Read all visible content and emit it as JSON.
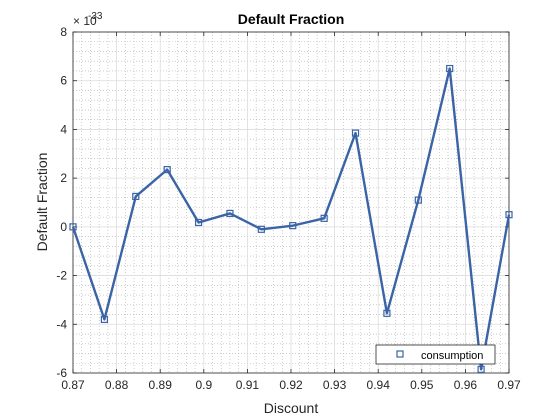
{
  "chart_data": {
    "type": "line",
    "title": "Default Fraction",
    "xlabel": "Discount",
    "ylabel": "Default Fraction",
    "y_exponent_label": "× 10",
    "y_exponent_value": "-33",
    "xlim": [
      0.87,
      0.97
    ],
    "ylim": [
      -6,
      8
    ],
    "x_ticks": [
      0.87,
      0.88,
      0.89,
      0.9,
      0.91,
      0.92,
      0.93,
      0.94,
      0.95,
      0.96,
      0.97
    ],
    "x_tick_labels": [
      "0.87",
      "0.88",
      "0.89",
      "0.9",
      "0.91",
      "0.92",
      "0.93",
      "0.94",
      "0.95",
      "0.96",
      "0.97"
    ],
    "y_ticks": [
      -6,
      -4,
      -2,
      0,
      2,
      4,
      6,
      8
    ],
    "y_tick_labels": [
      "-6",
      "-4",
      "-2",
      "0",
      "2",
      "4",
      "6",
      "8"
    ],
    "grid": true,
    "minor_grid": true,
    "legend_position": "bottom-right",
    "series": [
      {
        "name": "consumption",
        "marker": "square",
        "color": "#3a64a6",
        "x": [
          0.87,
          0.8772,
          0.8844,
          0.8916,
          0.8988,
          0.906,
          0.9132,
          0.9204,
          0.9276,
          0.9348,
          0.942,
          0.9492,
          0.9564,
          0.9636,
          0.97
        ],
        "y": [
          0.0,
          -3.8,
          1.25,
          2.35,
          0.18,
          0.55,
          -0.1,
          0.05,
          0.35,
          3.85,
          -3.55,
          1.1,
          6.5,
          -5.85,
          0.5
        ]
      }
    ]
  }
}
